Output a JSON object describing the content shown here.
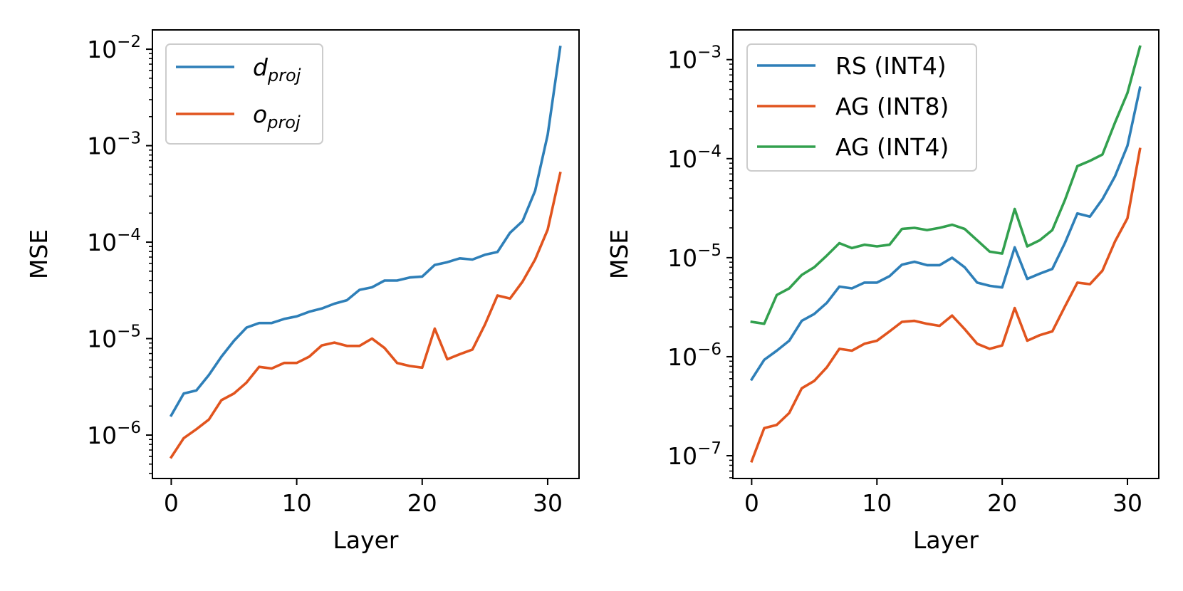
{
  "chart_data": [
    {
      "type": "line",
      "title": "",
      "xlabel": "Layer",
      "ylabel": "MSE",
      "yscale": "log",
      "xlim": [
        -1.5,
        32.5
      ],
      "ylim_exp": [
        -6.45,
        -1.8
      ],
      "xticks": [
        0,
        10,
        20,
        30
      ],
      "yticks_exp": [
        -6,
        -5,
        -4,
        -3,
        -2
      ],
      "legend_position": "top-left",
      "series": [
        {
          "name": "d",
          "name_sub": "proj",
          "color": "#2e7fb8",
          "x": [
            0,
            1,
            2,
            3,
            4,
            5,
            6,
            7,
            8,
            9,
            10,
            11,
            12,
            13,
            14,
            15,
            16,
            17,
            18,
            19,
            20,
            21,
            22,
            23,
            24,
            25,
            26,
            27,
            28,
            29,
            30,
            31
          ],
          "values": [
            1.6e-06,
            2.7e-06,
            2.9e-06,
            4.2e-06,
            6.5e-06,
            9.5e-06,
            1.3e-05,
            1.45e-05,
            1.45e-05,
            1.6e-05,
            1.7e-05,
            1.9e-05,
            2.05e-05,
            2.3e-05,
            2.5e-05,
            3.2e-05,
            3.4e-05,
            4e-05,
            4e-05,
            4.3e-05,
            4.4e-05,
            5.8e-05,
            6.2e-05,
            6.8e-05,
            6.6e-05,
            7.4e-05,
            7.9e-05,
            0.000125,
            0.000165,
            0.00034,
            0.0013,
            0.0105
          ]
        },
        {
          "name": "o",
          "name_sub": "proj",
          "color": "#e1541e",
          "x": [
            0,
            1,
            2,
            3,
            4,
            5,
            6,
            7,
            8,
            9,
            10,
            11,
            12,
            13,
            14,
            15,
            16,
            17,
            18,
            19,
            20,
            21,
            22,
            23,
            24,
            25,
            26,
            27,
            28,
            29,
            30,
            31
          ],
          "values": [
            5.9e-07,
            9.3e-07,
            1.15e-06,
            1.45e-06,
            2.3e-06,
            2.7e-06,
            3.5e-06,
            5.1e-06,
            4.9e-06,
            5.6e-06,
            5.6e-06,
            6.5e-06,
            8.5e-06,
            9.1e-06,
            8.4e-06,
            8.4e-06,
            1e-05,
            8e-06,
            5.6e-06,
            5.2e-06,
            5e-06,
            1.27e-05,
            6.1e-06,
            6.9e-06,
            7.7e-06,
            1.4e-05,
            2.8e-05,
            2.6e-05,
            3.9e-05,
            6.6e-05,
            0.000135,
            0.00052
          ]
        }
      ]
    },
    {
      "type": "line",
      "title": "",
      "xlabel": "Layer",
      "ylabel": "MSE",
      "yscale": "log",
      "xlim": [
        -1.5,
        32.5
      ],
      "ylim_exp": [
        -7.23,
        -2.7
      ],
      "xticks": [
        0,
        10,
        20,
        30
      ],
      "yticks_exp": [
        -7,
        -6,
        -5,
        -4,
        -3
      ],
      "legend_position": "top-left",
      "series": [
        {
          "name": "RS (INT4)",
          "color": "#2e7fb8",
          "x": [
            0,
            1,
            2,
            3,
            4,
            5,
            6,
            7,
            8,
            9,
            10,
            11,
            12,
            13,
            14,
            15,
            16,
            17,
            18,
            19,
            20,
            21,
            22,
            23,
            24,
            25,
            26,
            27,
            28,
            29,
            30,
            31
          ],
          "values": [
            5.9e-07,
            9.3e-07,
            1.15e-06,
            1.45e-06,
            2.3e-06,
            2.7e-06,
            3.5e-06,
            5.1e-06,
            4.9e-06,
            5.6e-06,
            5.6e-06,
            6.5e-06,
            8.5e-06,
            9.1e-06,
            8.4e-06,
            8.4e-06,
            1e-05,
            8e-06,
            5.6e-06,
            5.2e-06,
            5e-06,
            1.27e-05,
            6.1e-06,
            6.9e-06,
            7.7e-06,
            1.4e-05,
            2.8e-05,
            2.6e-05,
            3.9e-05,
            6.6e-05,
            0.000135,
            0.00052
          ]
        },
        {
          "name": "AG (INT8)",
          "color": "#e1541e",
          "x": [
            0,
            1,
            2,
            3,
            4,
            5,
            6,
            7,
            8,
            9,
            10,
            11,
            12,
            13,
            14,
            15,
            16,
            17,
            18,
            19,
            20,
            21,
            22,
            23,
            24,
            25,
            26,
            27,
            28,
            29,
            30,
            31
          ],
          "values": [
            8.8e-08,
            1.9e-07,
            2.05e-07,
            2.7e-07,
            4.8e-07,
            5.7e-07,
            7.8e-07,
            1.2e-06,
            1.15e-06,
            1.35e-06,
            1.45e-06,
            1.8e-06,
            2.25e-06,
            2.3e-06,
            2.15e-06,
            2.05e-06,
            2.6e-06,
            1.9e-06,
            1.35e-06,
            1.2e-06,
            1.3e-06,
            3.1e-06,
            1.45e-06,
            1.65e-06,
            1.8e-06,
            3.2e-06,
            5.6e-06,
            5.4e-06,
            7.4e-06,
            1.45e-05,
            2.5e-05,
            0.000125
          ]
        },
        {
          "name": "AG (INT4)",
          "color": "#32a04e",
          "x": [
            0,
            1,
            2,
            3,
            4,
            5,
            6,
            7,
            8,
            9,
            10,
            11,
            12,
            13,
            14,
            15,
            16,
            17,
            18,
            19,
            20,
            21,
            22,
            23,
            24,
            25,
            26,
            27,
            28,
            29,
            30,
            31
          ],
          "values": [
            2.25e-06,
            2.15e-06,
            4.2e-06,
            4.9e-06,
            6.7e-06,
            8e-06,
            1.05e-05,
            1.4e-05,
            1.25e-05,
            1.35e-05,
            1.3e-05,
            1.35e-05,
            1.95e-05,
            2e-05,
            1.9e-05,
            2e-05,
            2.15e-05,
            1.95e-05,
            1.5e-05,
            1.15e-05,
            1.1e-05,
            3.1e-05,
            1.3e-05,
            1.5e-05,
            1.9e-05,
            3.8e-05,
            8.4e-05,
            9.5e-05,
            0.00011,
            0.00023,
            0.00046,
            0.00135
          ]
        }
      ]
    }
  ]
}
